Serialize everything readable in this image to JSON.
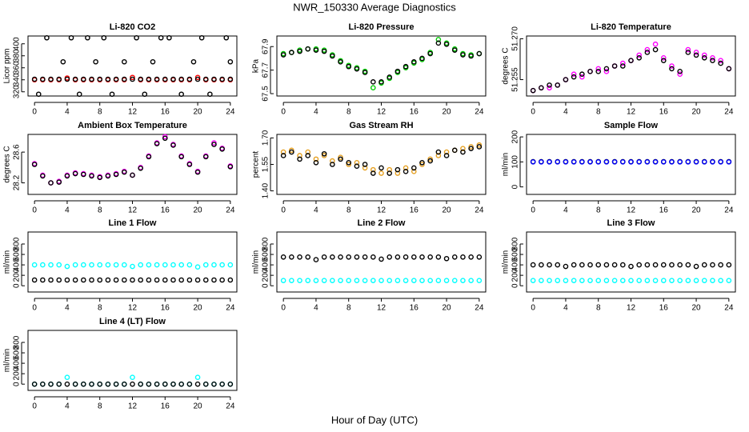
{
  "title": "NWR_150330  Average Diagnostics",
  "xlabel": "Hour of Day (UTC)",
  "chart_data": [
    {
      "type": "scatter",
      "title": "Li-820 CO2",
      "ylabel": "Licor ppm",
      "xlim": [
        -0.8,
        24.8
      ],
      "xticks": [
        0,
        4,
        8,
        12,
        16,
        20,
        24
      ],
      "ylim": [
        313,
        413
      ],
      "yticks": [
        320,
        340,
        360,
        380,
        400
      ],
      "x": [
        0,
        1,
        2,
        3,
        4,
        5,
        6,
        7,
        8,
        9,
        10,
        11,
        12,
        13,
        14,
        15,
        16,
        17,
        18,
        19,
        20,
        21,
        22,
        23,
        24
      ],
      "series": [
        {
          "color": "#ff0000",
          "values": [
            340,
            340,
            340,
            340,
            343,
            340,
            340,
            340,
            340,
            340,
            340,
            340,
            344,
            340,
            340,
            340,
            340,
            340,
            340,
            340,
            344,
            340,
            340,
            340,
            340
          ]
        },
        {
          "color": "#000000",
          "values": [
            341,
            341,
            341,
            341,
            341,
            341,
            341,
            341,
            341,
            341,
            341,
            341,
            341,
            341,
            341,
            341,
            341,
            341,
            341,
            341,
            341,
            341,
            341,
            341,
            341
          ]
        },
        {
          "color": "#000000",
          "x": [
            0.5,
            1.5,
            3.5,
            4.5,
            5.5,
            6.5,
            7.5,
            8.5,
            9.5,
            11,
            12.5,
            13.5,
            14.5,
            15.5,
            16.5,
            18,
            19.5,
            20.5,
            21.5,
            23.5,
            24
          ],
          "values": [
            316,
            410,
            370,
            410,
            316,
            410,
            370,
            410,
            316,
            370,
            410,
            316,
            370,
            410,
            410,
            316,
            370,
            410,
            316,
            410,
            370
          ]
        }
      ]
    },
    {
      "type": "scatter",
      "title": "Li-820 Pressure",
      "ylabel": "kPa",
      "xlim": [
        -0.8,
        24.8
      ],
      "xticks": [
        0,
        4,
        8,
        12,
        16,
        20,
        24
      ],
      "ylim": [
        67.48,
        67.99
      ],
      "yticks": [
        67.5,
        67.7,
        67.9
      ],
      "x": [
        0,
        1,
        2,
        3,
        4,
        5,
        6,
        7,
        8,
        9,
        10,
        11,
        12,
        13,
        14,
        15,
        16,
        17,
        18,
        19,
        20,
        21,
        22,
        23,
        24
      ],
      "series": [
        {
          "color": "#00cc00",
          "values": [
            67.84,
            67.85,
            67.87,
            67.88,
            67.88,
            67.87,
            67.83,
            67.78,
            67.74,
            67.72,
            67.69,
            67.55,
            67.59,
            67.63,
            67.68,
            67.72,
            67.76,
            67.79,
            67.85,
            67.96,
            67.93,
            67.88,
            67.84,
            67.83,
            67.84
          ]
        },
        {
          "color": "#000000",
          "values": [
            67.83,
            67.85,
            67.86,
            67.88,
            67.87,
            67.86,
            67.82,
            67.77,
            67.73,
            67.71,
            67.68,
            67.6,
            67.6,
            67.64,
            67.69,
            67.73,
            67.77,
            67.8,
            67.84,
            67.93,
            67.92,
            67.87,
            67.83,
            67.82,
            67.84
          ]
        }
      ]
    },
    {
      "type": "scatter",
      "title": "Li-820 Temperature",
      "ylabel": "degrees C",
      "xlim": [
        -0.8,
        24.8
      ],
      "xticks": [
        0,
        4,
        8,
        12,
        16,
        20,
        24
      ],
      "ylim": [
        51.249,
        51.271
      ],
      "yticks": [
        51.255,
        {
          "value": 51.27,
          "label": "51.270"
        }
      ],
      "x": [
        0,
        1,
        2,
        3,
        4,
        5,
        6,
        7,
        8,
        9,
        10,
        11,
        12,
        13,
        14,
        15,
        16,
        17,
        18,
        19,
        20,
        21,
        22,
        23,
        24
      ],
      "series": [
        {
          "color": "#ff00ff",
          "values": [
            51.251,
            51.252,
            51.252,
            51.253,
            51.255,
            51.257,
            51.256,
            51.258,
            51.259,
            51.258,
            51.26,
            51.261,
            51.262,
            51.264,
            51.266,
            51.268,
            51.263,
            51.26,
            51.257,
            51.266,
            51.265,
            51.264,
            51.263,
            51.262,
            51.259
          ]
        },
        {
          "color": "#000000",
          "values": [
            51.251,
            51.252,
            51.253,
            51.253,
            51.255,
            51.256,
            51.257,
            51.258,
            51.258,
            51.259,
            51.26,
            51.26,
            51.262,
            51.263,
            51.265,
            51.266,
            51.262,
            51.259,
            51.258,
            51.265,
            51.264,
            51.263,
            51.262,
            51.261,
            51.259
          ]
        }
      ]
    },
    {
      "type": "scatter",
      "title": "Ambient Box Temperature",
      "ylabel": "degrees C",
      "xlim": [
        -0.8,
        24.8
      ],
      "xticks": [
        0,
        4,
        8,
        12,
        16,
        20,
        24
      ],
      "ylim": [
        28.05,
        28.83
      ],
      "yticks": [
        28.2,
        28.6
      ],
      "x": [
        0,
        1,
        2,
        3,
        4,
        5,
        6,
        7,
        8,
        9,
        10,
        11,
        12,
        13,
        14,
        15,
        16,
        17,
        18,
        19,
        20,
        21,
        22,
        23,
        24
      ],
      "series": [
        {
          "color": "#ff00ff",
          "values": [
            28.45,
            28.3,
            28.2,
            28.22,
            28.3,
            28.33,
            28.32,
            28.3,
            28.28,
            28.3,
            28.32,
            28.35,
            28.3,
            28.4,
            28.55,
            28.72,
            28.8,
            28.7,
            28.55,
            28.45,
            28.35,
            28.55,
            28.72,
            28.65,
            28.42
          ]
        },
        {
          "color": "#000000",
          "values": [
            28.44,
            28.29,
            28.2,
            28.21,
            28.29,
            28.32,
            28.31,
            28.29,
            28.27,
            28.29,
            28.31,
            28.34,
            28.3,
            28.39,
            28.54,
            28.71,
            28.78,
            28.69,
            28.54,
            28.44,
            28.34,
            28.54,
            28.7,
            28.64,
            28.41
          ]
        }
      ]
    },
    {
      "type": "scatter",
      "title": "Gas Stream RH",
      "ylabel": "percent",
      "xlim": [
        -0.8,
        24.8
      ],
      "xticks": [
        0,
        4,
        8,
        12,
        16,
        20,
        24
      ],
      "ylim": [
        1.38,
        1.72
      ],
      "yticks": [
        {
          "value": 1.4,
          "label": "1.40"
        },
        1.55,
        {
          "value": 1.7,
          "label": "1.70"
        }
      ],
      "x": [
        0,
        1,
        2,
        3,
        4,
        5,
        6,
        7,
        8,
        9,
        10,
        11,
        12,
        13,
        14,
        15,
        16,
        17,
        18,
        19,
        20,
        21,
        22,
        23,
        24
      ],
      "series": [
        {
          "color": "#e6a020",
          "values": [
            1.62,
            1.63,
            1.6,
            1.62,
            1.58,
            1.6,
            1.57,
            1.59,
            1.55,
            1.56,
            1.53,
            1.52,
            1.5,
            1.52,
            1.5,
            1.53,
            1.51,
            1.55,
            1.58,
            1.6,
            1.62,
            1.63,
            1.64,
            1.65,
            1.66
          ]
        },
        {
          "color": "#000000",
          "values": [
            1.6,
            1.62,
            1.58,
            1.6,
            1.56,
            1.61,
            1.55,
            1.58,
            1.56,
            1.54,
            1.55,
            1.5,
            1.53,
            1.5,
            1.52,
            1.51,
            1.53,
            1.56,
            1.57,
            1.62,
            1.6,
            1.63,
            1.62,
            1.64,
            1.65
          ]
        }
      ]
    },
    {
      "type": "scatter",
      "title": "Sample Flow",
      "ylabel": "ml/min",
      "xlim": [
        -0.8,
        24.8
      ],
      "xticks": [
        0,
        4,
        8,
        12,
        16,
        20,
        24
      ],
      "ylim": [
        -30,
        210
      ],
      "yticks": [
        0,
        100,
        200
      ],
      "x": [
        0,
        1,
        2,
        3,
        4,
        5,
        6,
        7,
        8,
        9,
        10,
        11,
        12,
        13,
        14,
        15,
        16,
        17,
        18,
        19,
        20,
        21,
        22,
        23,
        24
      ],
      "series": [
        {
          "color": "#000000",
          "values": [
            101,
            101,
            101,
            101,
            101,
            101,
            101,
            101,
            101,
            101,
            101,
            101,
            101,
            101,
            101,
            101,
            101,
            101,
            101,
            101,
            101,
            101,
            101,
            101,
            101
          ]
        },
        {
          "color": "#0000ff",
          "values": [
            100,
            100,
            100,
            100,
            100,
            100,
            100,
            100,
            100,
            100,
            100,
            100,
            100,
            100,
            100,
            100,
            100,
            100,
            100,
            100,
            100,
            100,
            100,
            100,
            100
          ]
        }
      ]
    },
    {
      "type": "scatter",
      "title": "Line 1 Flow",
      "ylabel": "ml/min",
      "xlim": [
        -0.8,
        24.8
      ],
      "xticks": [
        0,
        4,
        8,
        12,
        16,
        20,
        24
      ],
      "ylim": [
        -120,
        1030
      ],
      "yticks": [
        0,
        200,
        400,
        600,
        800
      ],
      "x": [
        0,
        1,
        2,
        3,
        4,
        5,
        6,
        7,
        8,
        9,
        10,
        11,
        12,
        13,
        14,
        15,
        16,
        17,
        18,
        19,
        20,
        21,
        22,
        23,
        24
      ],
      "series": [
        {
          "color": "#00ffff",
          "values": [
            400,
            400,
            400,
            400,
            370,
            400,
            400,
            400,
            400,
            400,
            400,
            400,
            370,
            400,
            400,
            400,
            400,
            400,
            400,
            400,
            360,
            400,
            400,
            400,
            400
          ]
        },
        {
          "color": "#000000",
          "values": [
            110,
            110,
            110,
            110,
            110,
            110,
            110,
            110,
            110,
            110,
            110,
            110,
            110,
            110,
            110,
            110,
            110,
            110,
            110,
            110,
            110,
            110,
            110,
            110,
            110
          ]
        }
      ]
    },
    {
      "type": "scatter",
      "title": "Line 2 Flow",
      "ylabel": "ml/min",
      "xlim": [
        -0.8,
        24.8
      ],
      "xticks": [
        0,
        4,
        8,
        12,
        16,
        20,
        24
      ],
      "ylim": [
        -120,
        1030
      ],
      "yticks": [
        0,
        200,
        400,
        600,
        800
      ],
      "x": [
        0,
        1,
        2,
        3,
        4,
        5,
        6,
        7,
        8,
        9,
        10,
        11,
        12,
        13,
        14,
        15,
        16,
        17,
        18,
        19,
        20,
        21,
        22,
        23,
        24
      ],
      "series": [
        {
          "color": "#00ffff",
          "values": [
            100,
            100,
            100,
            100,
            100,
            100,
            100,
            100,
            100,
            100,
            100,
            100,
            100,
            100,
            100,
            100,
            100,
            100,
            100,
            100,
            100,
            100,
            100,
            100,
            100
          ]
        },
        {
          "color": "#000000",
          "values": [
            550,
            550,
            550,
            550,
            500,
            550,
            550,
            550,
            550,
            550,
            550,
            550,
            510,
            550,
            550,
            550,
            550,
            550,
            550,
            550,
            520,
            550,
            550,
            550,
            550
          ]
        }
      ]
    },
    {
      "type": "scatter",
      "title": "Line 3 Flow",
      "ylabel": "ml/min",
      "xlim": [
        -0.8,
        24.8
      ],
      "xticks": [
        0,
        4,
        8,
        12,
        16,
        20,
        24
      ],
      "ylim": [
        -120,
        1030
      ],
      "yticks": [
        0,
        200,
        400,
        600,
        800
      ],
      "x": [
        0,
        1,
        2,
        3,
        4,
        5,
        6,
        7,
        8,
        9,
        10,
        11,
        12,
        13,
        14,
        15,
        16,
        17,
        18,
        19,
        20,
        21,
        22,
        23,
        24
      ],
      "series": [
        {
          "color": "#00ffff",
          "values": [
            100,
            100,
            100,
            100,
            100,
            100,
            100,
            100,
            100,
            100,
            100,
            100,
            100,
            100,
            100,
            100,
            100,
            100,
            100,
            100,
            100,
            100,
            100,
            100,
            100
          ]
        },
        {
          "color": "#000000",
          "values": [
            400,
            400,
            400,
            400,
            370,
            400,
            400,
            400,
            400,
            400,
            400,
            400,
            370,
            400,
            400,
            400,
            400,
            400,
            400,
            400,
            370,
            400,
            400,
            400,
            400
          ]
        }
      ]
    },
    {
      "type": "scatter",
      "title": "Line 4 (LT) Flow",
      "ylabel": "ml/min",
      "xlim": [
        -0.8,
        24.8
      ],
      "xticks": [
        0,
        4,
        8,
        12,
        16,
        20,
        24
      ],
      "ylim": [
        -120,
        1030
      ],
      "yticks": [
        0,
        200,
        400,
        600,
        800
      ],
      "x": [
        0,
        1,
        2,
        3,
        4,
        5,
        6,
        7,
        8,
        9,
        10,
        11,
        12,
        13,
        14,
        15,
        16,
        17,
        18,
        19,
        20,
        21,
        22,
        23,
        24
      ],
      "series": [
        {
          "color": "#00ffff",
          "values": [
            0,
            0,
            0,
            0,
            130,
            0,
            0,
            0,
            0,
            0,
            0,
            0,
            130,
            0,
            0,
            0,
            0,
            0,
            0,
            0,
            130,
            0,
            0,
            0,
            0
          ]
        },
        {
          "color": "#000000",
          "values": [
            0,
            0,
            0,
            0,
            0,
            0,
            0,
            0,
            0,
            0,
            0,
            0,
            0,
            0,
            0,
            0,
            0,
            0,
            0,
            0,
            0,
            0,
            0,
            0,
            0
          ]
        }
      ]
    }
  ]
}
